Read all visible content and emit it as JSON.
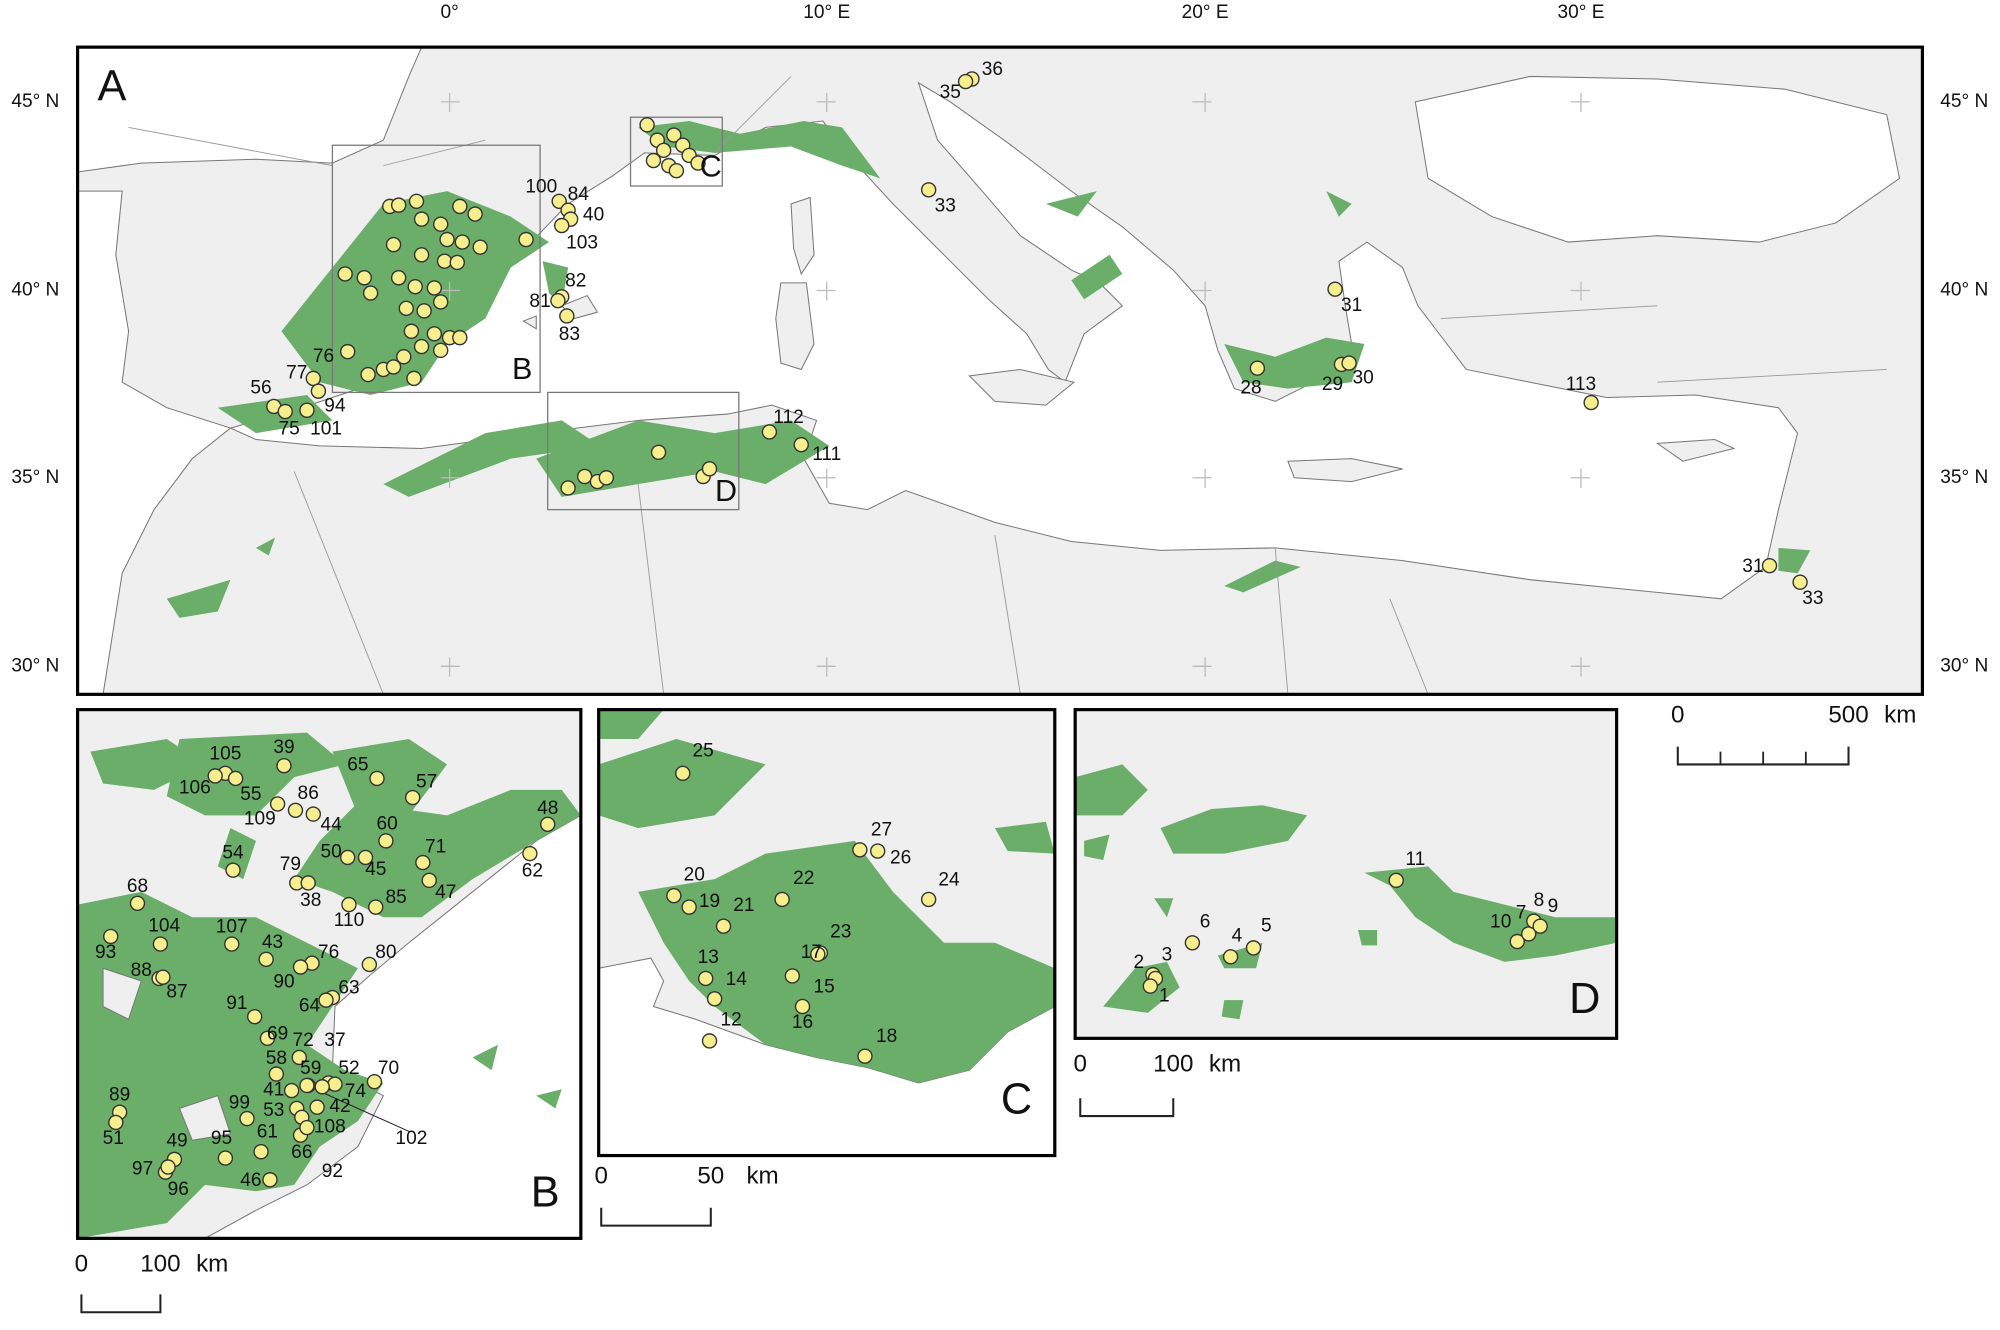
{
  "map": {
    "lat_labels": [
      "45° N",
      "40° N",
      "35° N",
      "30° N"
    ],
    "lon_labels": [
      "0°",
      "10° E",
      "20° E",
      "30° E"
    ],
    "panels": [
      {
        "label": "A",
        "inset_labels": [
          "B",
          "C",
          "D"
        ],
        "sites": [
          "36",
          "35",
          "33",
          "100",
          "84",
          "40",
          "103",
          "82",
          "81",
          "83",
          "76",
          "77",
          "56",
          "94",
          "75",
          "101",
          "112",
          "111",
          "31",
          "28",
          "29",
          "30",
          "113",
          "31",
          "33"
        ],
        "scale": {
          "ticks": [
            "0",
            "500"
          ],
          "unit": "km"
        }
      },
      {
        "label": "B",
        "sites": [
          "105",
          "106",
          "39",
          "55",
          "65",
          "57",
          "86",
          "109",
          "44",
          "48",
          "60",
          "54",
          "50",
          "71",
          "62",
          "79",
          "45",
          "47",
          "38",
          "85",
          "110",
          "68",
          "104",
          "107",
          "93",
          "43",
          "76",
          "80",
          "88",
          "87",
          "90",
          "63",
          "64",
          "91",
          "69",
          "72",
          "37",
          "58",
          "52",
          "70",
          "59",
          "41",
          "74",
          "89",
          "99",
          "53",
          "42",
          "61",
          "108",
          "102",
          "51",
          "49",
          "95",
          "66",
          "92",
          "97",
          "96",
          "46"
        ],
        "scale": {
          "ticks": [
            "0",
            "100"
          ],
          "unit": "km"
        }
      },
      {
        "label": "C",
        "sites": [
          "25",
          "27",
          "26",
          "24",
          "20",
          "19",
          "21",
          "22",
          "23",
          "17",
          "13",
          "14",
          "15",
          "16",
          "12",
          "18"
        ],
        "scale": {
          "ticks": [
            "0",
            "50"
          ],
          "unit": "km"
        }
      },
      {
        "label": "D",
        "sites": [
          "11",
          "10",
          "7",
          "8",
          "9",
          "6",
          "5",
          "4",
          "2",
          "3",
          "1"
        ],
        "scale": {
          "ticks": [
            "0",
            "100"
          ],
          "unit": "km"
        }
      }
    ]
  }
}
